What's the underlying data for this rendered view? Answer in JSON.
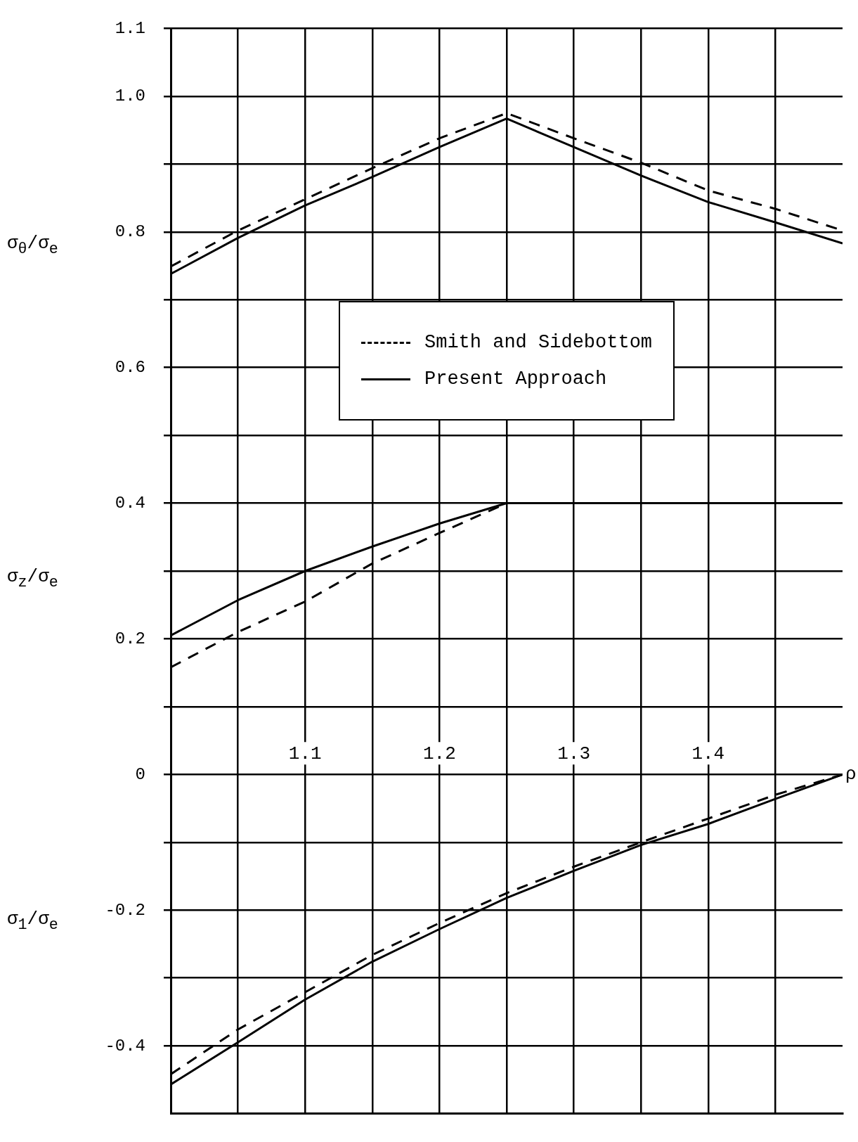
{
  "chart_data": {
    "type": "line",
    "xlabel": "ρ",
    "legend": "center",
    "grid": true,
    "marker": "none",
    "x": [
      1.0,
      1.05,
      1.1,
      1.15,
      1.2,
      1.25,
      1.3,
      1.35,
      1.4,
      1.45,
      1.5
    ],
    "xlim": [
      1.0,
      1.5
    ],
    "xticks": [
      {
        "value": 1.05,
        "label": null
      },
      1.1,
      {
        "value": 1.15,
        "label": null
      },
      1.2,
      {
        "value": 1.25,
        "label": null
      },
      1.3,
      {
        "value": 1.35,
        "label": null
      },
      1.4,
      {
        "value": 1.45,
        "label": null
      }
    ],
    "ylim": [
      -0.5,
      1.1
    ],
    "yticks": [
      {
        "value": -0.4,
        "label": "-0.4"
      },
      {
        "value": -0.3,
        "label": null
      },
      {
        "value": -0.2,
        "label": "-0.2"
      },
      {
        "value": -0.1,
        "label": null
      },
      0,
      {
        "value": 0.1,
        "label": null
      },
      {
        "value": 0.2,
        "label": "0.2"
      },
      {
        "value": 0.3,
        "label": null
      },
      {
        "value": 0.4,
        "label": "0.4"
      },
      {
        "value": 0.5,
        "label": null
      },
      {
        "value": 0.6,
        "label": "0.6"
      },
      {
        "value": 0.7,
        "label": null
      },
      {
        "value": 0.8,
        "label": "0.8"
      },
      {
        "value": 0.9,
        "label": null
      },
      {
        "value": 1.0,
        "label": "1.0"
      },
      1.1
    ],
    "series": [
      {
        "name": "Smith and Sidebottom",
        "color": "#000000",
        "line_style": "dashed",
        "values": [
          0.749,
          0.802,
          0.848,
          0.894,
          0.938,
          0.975,
          0.938,
          0.902,
          0.861,
          0.834,
          0.802
        ]
      },
      {
        "name": "Present Approach",
        "color": "#000000",
        "line_style": "solid",
        "values": [
          0.738,
          0.791,
          0.839,
          0.881,
          0.925,
          0.967,
          0.925,
          0.883,
          0.844,
          0.814,
          0.783
        ]
      },
      {
        "color": "#000000",
        "line_style": "dashed",
        "values": [
          0.158,
          0.21,
          0.255,
          0.311,
          0.356,
          0.4,
          0.4,
          0.4,
          0.4,
          0.4,
          0.4
        ]
      },
      {
        "color": "#000000",
        "line_style": "solid",
        "values": [
          0.205,
          0.257,
          0.3,
          0.336,
          0.37,
          0.4,
          0.4,
          0.4,
          0.4,
          0.4,
          0.4
        ]
      },
      {
        "color": "#000000",
        "line_style": "dashed",
        "values": [
          -0.442,
          -0.376,
          -0.321,
          -0.266,
          -0.219,
          -0.175,
          -0.136,
          -0.1,
          -0.065,
          -0.03,
          0
        ]
      },
      {
        "color": "#000000",
        "line_style": "solid",
        "values": [
          -0.457,
          -0.395,
          -0.332,
          -0.276,
          -0.228,
          -0.182,
          -0.142,
          -0.104,
          -0.073,
          -0.036,
          0
        ]
      }
    ],
    "annotations": [
      "σ$_{θ}$/σ$_{e}$",
      "σ$_{z}$/σ$_{e}$",
      "σ$_{1}$/σ$_{e}$"
    ]
  }
}
